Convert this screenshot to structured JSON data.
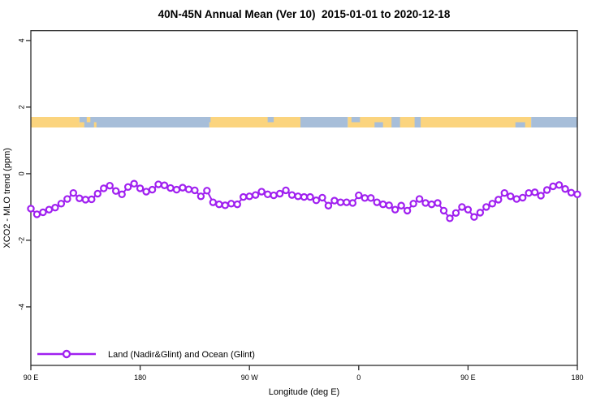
{
  "chart_data": {
    "type": "line",
    "title": "40N-45N Annual Mean (Ver 10)  2015-01-01 to 2020-12-18",
    "xlabel": "Longitude (deg E)",
    "ylabel": "XCO2 - MLO trend (ppm)",
    "x_axis": {
      "tick_labels": [
        "90 E",
        "180",
        "90 W",
        "0",
        "90 E",
        "180"
      ],
      "tick_offsets_deg": [
        0,
        90,
        180,
        270,
        360,
        450
      ],
      "span_deg": 450,
      "note": "longitude wraps starting at 90E eastward to 180"
    },
    "y_axis": {
      "tick_values": [
        4,
        2,
        0,
        -2,
        -4
      ],
      "ylim": [
        -5.76,
        4.3
      ],
      "labels_rotated": true
    },
    "grid": false,
    "legend": {
      "position": "bottom-left",
      "entries": [
        {
          "label": "Land (Nadir&Glint) and Ocean (Glint)",
          "color": "#A020F0",
          "marker": "open-circle"
        }
      ]
    },
    "series": [
      {
        "name": "Land (Nadir&Glint) and Ocean (Glint)",
        "color": "#A020F0",
        "marker": "open-circle",
        "x_start_offset_deg": 0,
        "x_step_deg": 5,
        "values": [
          -1.05,
          -1.22,
          -1.16,
          -1.08,
          -1.02,
          -0.9,
          -0.76,
          -0.58,
          -0.74,
          -0.78,
          -0.77,
          -0.6,
          -0.44,
          -0.36,
          -0.52,
          -0.62,
          -0.4,
          -0.3,
          -0.44,
          -0.54,
          -0.48,
          -0.32,
          -0.35,
          -0.43,
          -0.48,
          -0.42,
          -0.47,
          -0.5,
          -0.68,
          -0.51,
          -0.86,
          -0.92,
          -0.95,
          -0.9,
          -0.92,
          -0.7,
          -0.68,
          -0.64,
          -0.54,
          -0.62,
          -0.65,
          -0.6,
          -0.5,
          -0.64,
          -0.68,
          -0.7,
          -0.7,
          -0.8,
          -0.72,
          -0.96,
          -0.81,
          -0.86,
          -0.86,
          -0.88,
          -0.65,
          -0.73,
          -0.73,
          -0.86,
          -0.92,
          -0.95,
          -1.08,
          -0.96,
          -1.11,
          -0.9,
          -0.76,
          -0.88,
          -0.92,
          -0.88,
          -1.11,
          -1.34,
          -1.18,
          -1.0,
          -1.08,
          -1.3,
          -1.17,
          -1.0,
          -0.9,
          -0.78,
          -0.58,
          -0.68,
          -0.76,
          -0.72,
          -0.58,
          -0.56,
          -0.66,
          -0.49,
          -0.38,
          -0.34,
          -0.46,
          -0.57,
          -0.62
        ]
      }
    ],
    "surface_band": {
      "value_top": 1.78,
      "value_bottom": 1.47,
      "colors": {
        "land": "#FBD47E",
        "ocean": "#A7BED9"
      },
      "base_segments": [
        {
          "from": 0,
          "to": 40,
          "surface": "land"
        },
        {
          "from": 40,
          "to": 147,
          "surface": "ocean"
        },
        {
          "from": 147,
          "to": 222,
          "surface": "land"
        },
        {
          "from": 222,
          "to": 261,
          "surface": "ocean"
        },
        {
          "from": 261,
          "to": 412,
          "surface": "land"
        },
        {
          "from": 412,
          "to": 450,
          "surface": "ocean"
        }
      ],
      "detail_chips": [
        {
          "from": 40,
          "to": 44,
          "surface": "land",
          "pos": "bottom"
        },
        {
          "from": 46,
          "to": 49,
          "surface": "land",
          "pos": "top"
        },
        {
          "from": 52,
          "to": 54,
          "surface": "land",
          "pos": "bottom"
        },
        {
          "from": 145,
          "to": 148,
          "surface": "ocean",
          "pos": "top"
        },
        {
          "from": 195,
          "to": 200,
          "surface": "ocean",
          "pos": "top"
        },
        {
          "from": 264,
          "to": 271,
          "surface": "ocean",
          "pos": "top"
        },
        {
          "from": 283,
          "to": 290,
          "surface": "ocean",
          "pos": "bottom"
        },
        {
          "from": 297,
          "to": 304,
          "surface": "ocean",
          "pos": "full"
        },
        {
          "from": 316,
          "to": 321,
          "surface": "ocean",
          "pos": "full"
        },
        {
          "from": 399,
          "to": 407,
          "surface": "ocean",
          "pos": "bottom"
        }
      ]
    },
    "colors": {
      "axis": "#2b2b2b",
      "text": "#000000",
      "background": "#ffffff"
    }
  }
}
